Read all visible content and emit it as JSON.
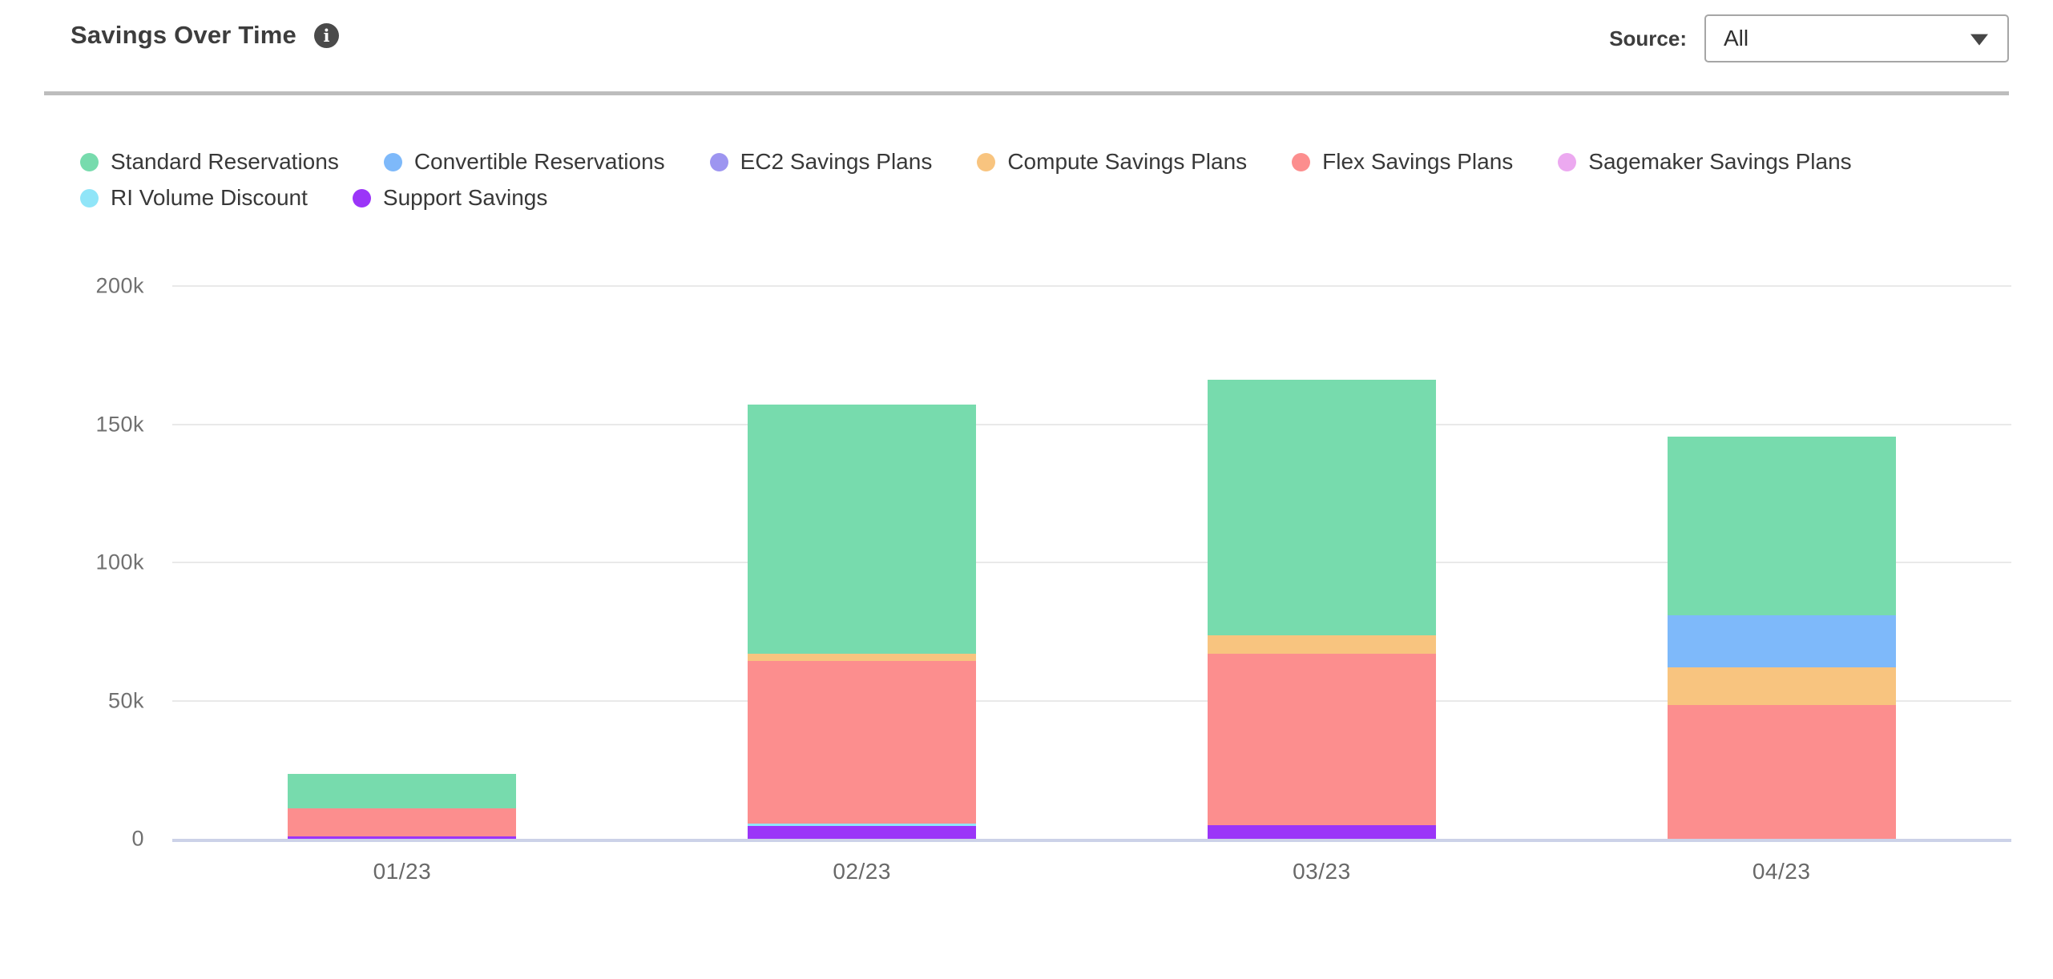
{
  "header": {
    "title": "Savings Over Time",
    "info_icon_glyph": "i",
    "source_label": "Source:",
    "source_value": "All"
  },
  "chart_data": {
    "type": "bar",
    "stacked": true,
    "title": "Savings Over Time",
    "xlabel": "",
    "ylabel": "",
    "categories": [
      "01/23",
      "02/23",
      "03/23",
      "04/23"
    ],
    "series": [
      {
        "name": "Standard Reservations",
        "color": "#77dbad",
        "values": [
          12500,
          90000,
          92500,
          64500
        ]
      },
      {
        "name": "Convertible Reservations",
        "color": "#7eb9fa",
        "values": [
          0,
          0,
          0,
          19000
        ]
      },
      {
        "name": "EC2 Savings Plans",
        "color": "#9d95f0",
        "values": [
          0,
          0,
          0,
          0
        ]
      },
      {
        "name": "Compute Savings Plans",
        "color": "#f8c47f",
        "values": [
          0,
          2500,
          6500,
          13500
        ]
      },
      {
        "name": "Flex Savings Plans",
        "color": "#fc8e8e",
        "values": [
          10000,
          59000,
          62000,
          48500
        ]
      },
      {
        "name": "Sagemaker Savings Plans",
        "color": "#eca9f0",
        "values": [
          0,
          0,
          0,
          0
        ]
      },
      {
        "name": "RI Volume Discount",
        "color": "#90e5f8",
        "values": [
          0,
          1000,
          0,
          0
        ]
      },
      {
        "name": "Support Savings",
        "color": "#9b35f8",
        "values": [
          1000,
          4500,
          5000,
          0
        ]
      }
    ],
    "stack_order": "bottom-to-top is reverse of legend order",
    "totals": [
      23500,
      157000,
      166000,
      145500
    ],
    "ylim": [
      0,
      200000
    ],
    "yticks": [
      {
        "label": "0",
        "value": 0
      },
      {
        "label": "50k",
        "value": 50000
      },
      {
        "label": "100k",
        "value": 100000
      },
      {
        "label": "150k",
        "value": 150000
      },
      {
        "label": "200k",
        "value": 200000
      }
    ],
    "grid": true,
    "legend_position": "top-left"
  },
  "colors": {
    "axis_line": "#ccd2e8",
    "gridline": "#e9e9e9",
    "header_divider": "#bdbdbd",
    "text_primary": "#3d3d3d",
    "text_secondary": "#707070",
    "info_icon_bg": "#4a4a4a"
  }
}
